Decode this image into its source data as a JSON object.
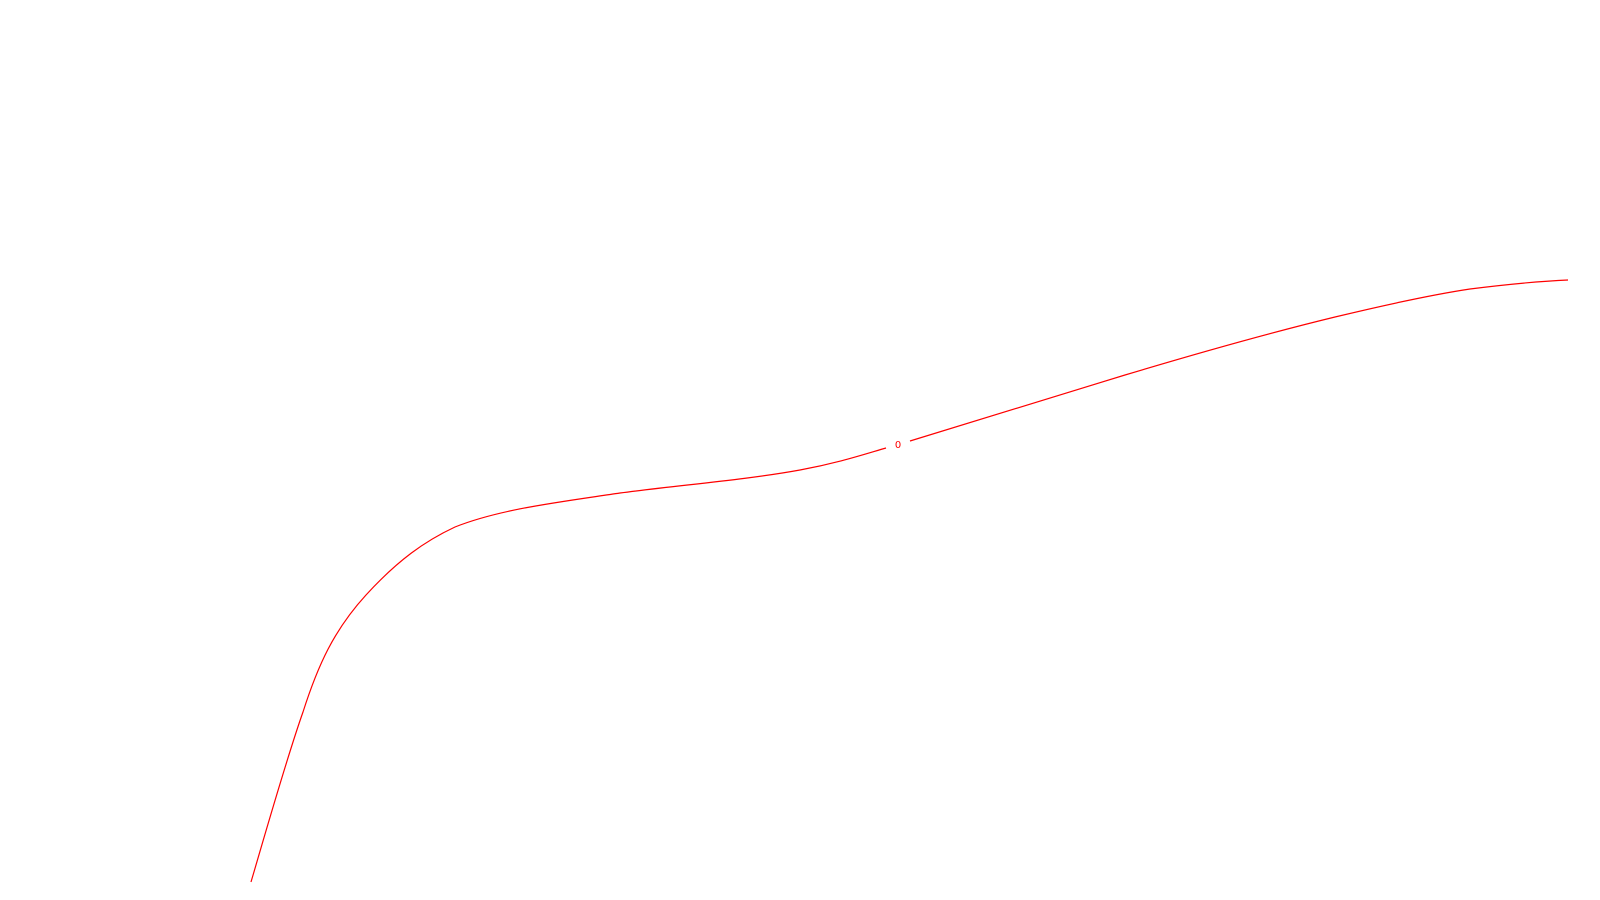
{
  "diagram": {
    "background_color": "#ffffff",
    "curve": {
      "color": "#ff0000",
      "label": "0"
    }
  }
}
